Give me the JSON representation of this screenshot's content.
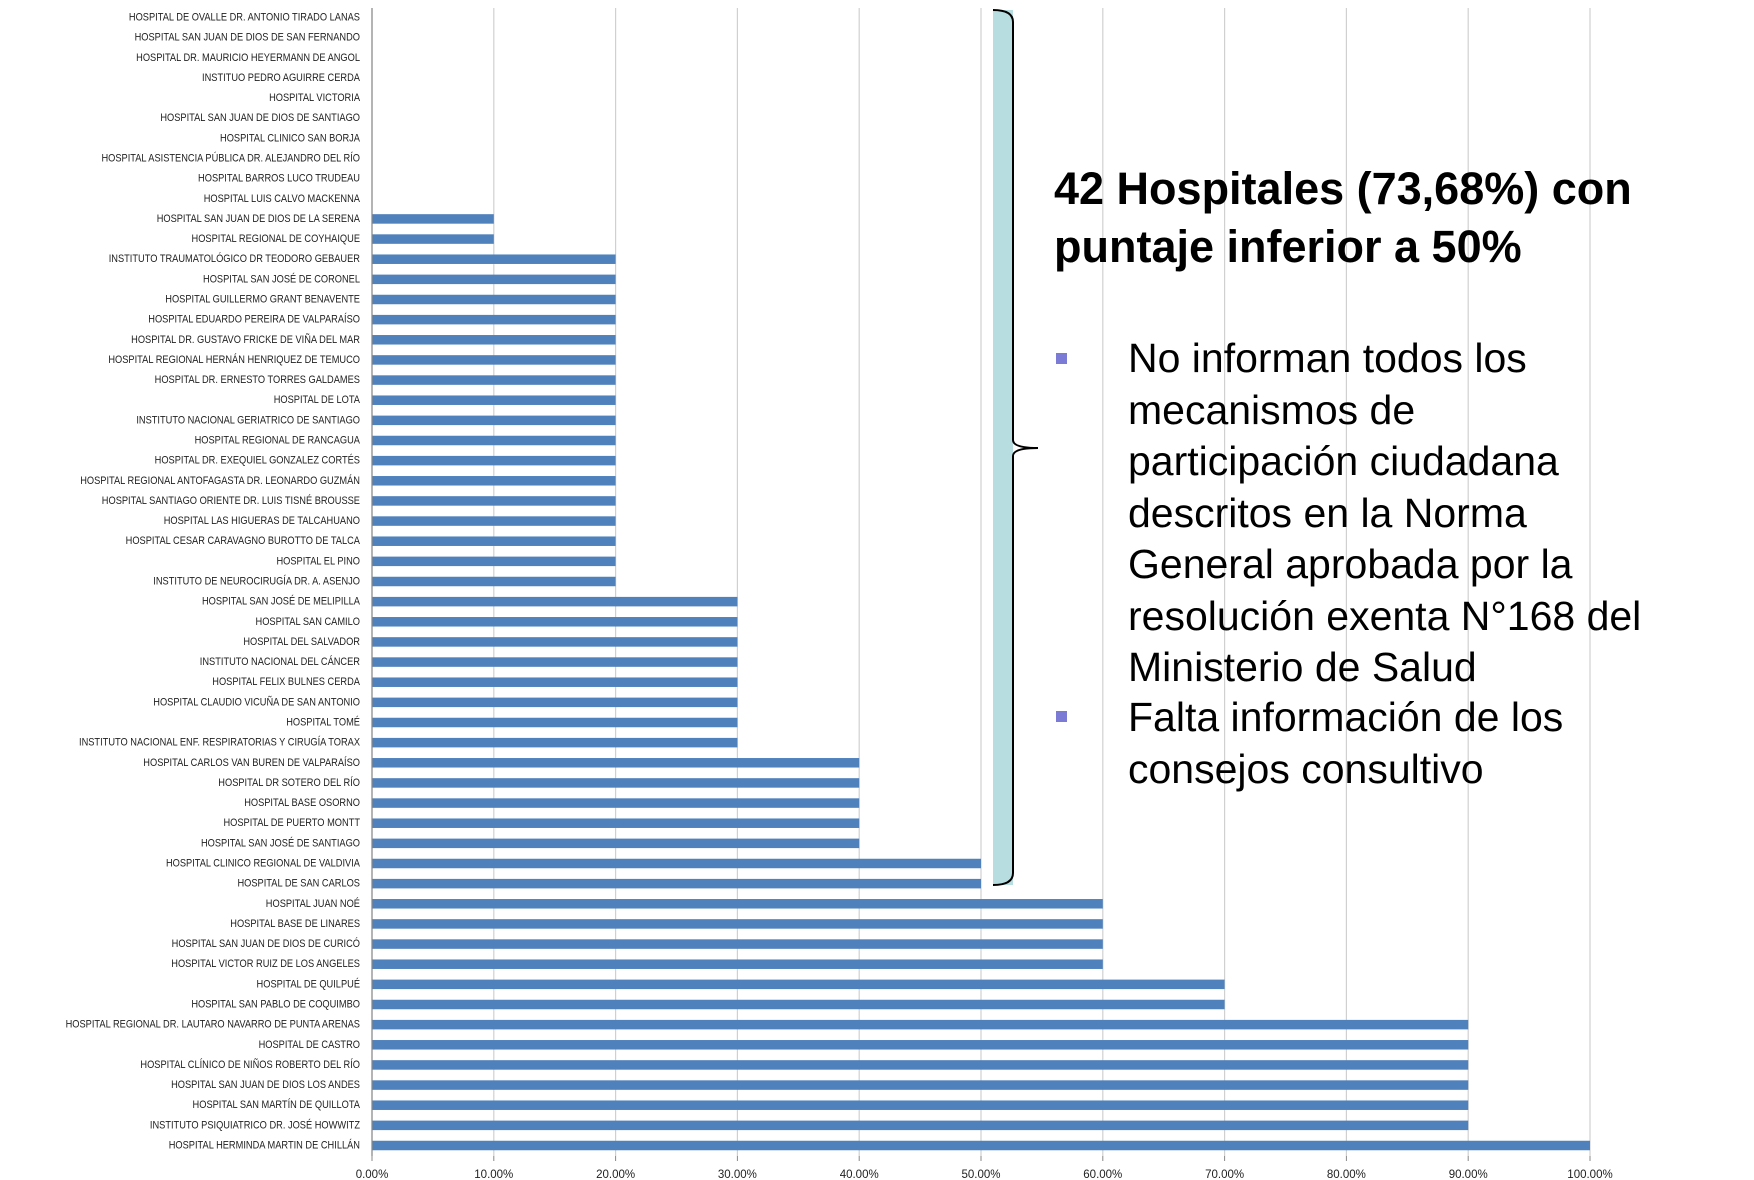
{
  "chart_data": {
    "type": "barh",
    "categories": [
      "HOSPITAL DE OVALLE DR. ANTONIO TIRADO LANAS",
      "HOSPITAL SAN JUAN DE DIOS DE SAN FERNANDO",
      "HOSPITAL DR. MAURICIO HEYERMANN DE ANGOL",
      "INSTITUO PEDRO AGUIRRE CERDA",
      "HOSPITAL VICTORIA",
      "HOSPITAL SAN JUAN DE DIOS DE SANTIAGO",
      "HOSPITAL CLINICO SAN BORJA",
      "HOSPITAL ASISTENCIA PÚBLICA DR. ALEJANDRO DEL RÍO",
      "HOSPITAL BARROS LUCO TRUDEAU",
      "HOSPITAL LUIS CALVO MACKENNA",
      "HOSPITAL SAN JUAN DE DIOS DE LA SERENA",
      "HOSPITAL REGIONAL DE COYHAIQUE",
      "INSTITUTO TRAUMATOLÓGICO DR TEODORO GEBAUER",
      "HOSPITAL  SAN JOSÉ DE CORONEL",
      "HOSPITAL GUILLERMO GRANT BENAVENTE",
      "HOSPITAL EDUARDO PEREIRA DE VALPARAÍSO",
      "HOSPITAL DR. GUSTAVO FRICKE DE VIÑA DEL MAR",
      "HOSPITAL REGIONAL HERNÁN HENRIQUEZ DE  TEMUCO",
      "HOSPITAL DR. ERNESTO TORRES GALDAMES",
      "HOSPITAL DE LOTA",
      "INSTITUTO NACIONAL GERIATRICO  DE SANTIAGO",
      "HOSPITAL REGIONAL DE RANCAGUA",
      "HOSPITAL DR. EXEQUIEL GONZALEZ CORTÉS",
      "HOSPITAL REGIONAL ANTOFAGASTA DR. LEONARDO GUZMÁN",
      "HOSPITAL SANTIAGO ORIENTE DR. LUIS TISNÉ BROUSSE",
      "HOSPITAL LAS HIGUERAS DE TALCAHUANO",
      "HOSPITAL CESAR CARAVAGNO BUROTTO DE TALCA",
      "HOSPITAL EL PINO",
      "INSTITUTO DE NEUROCIRUGÍA DR. A. ASENJO",
      "HOSPITAL SAN JOSÉ DE MELIPILLA",
      "HOSPITAL SAN CAMILO",
      "HOSPITAL DEL SALVADOR",
      "INSTITUTO NACIONAL DEL CÁNCER",
      "HOSPITAL FELIX BULNES CERDA",
      "HOSPITAL CLAUDIO VICUÑA DE SAN ANTONIO",
      "HOSPITAL TOMÉ",
      "INSTITUTO NACIONAL ENF. RESPIRATORIAS Y CIRUGÍA TORAX",
      "HOSPITAL CARLOS VAN BUREN DE VALPARAÍSO",
      "HOSPITAL DR SOTERO DEL RÍO",
      "HOSPITAL BASE OSORNO",
      "HOSPITAL DE PUERTO MONTT",
      "HOSPITAL SAN JOSÉ DE SANTIAGO",
      "HOSPITAL CLINICO REGIONAL DE VALDIVIA",
      "HOSPITAL  DE SAN CARLOS",
      "HOSPITAL JUAN NOÉ",
      "HOSPITAL BASE DE LINARES",
      "HOSPITAL SAN JUAN DE DIOS DE CURICÓ",
      "HOSPITAL VICTOR RUIZ DE LOS ANGELES",
      "HOSPITAL DE QUILPUÉ",
      "HOSPITAL SAN PABLO DE COQUIMBO",
      "HOSPITAL REGIONAL DR. LAUTARO NAVARRO DE PUNTA ARENAS",
      "HOSPITAL DE CASTRO",
      "HOSPITAL CLÍNICO DE NIÑOS ROBERTO DEL RÍO",
      "HOSPITAL SAN JUAN DE DIOS LOS ANDES",
      "HOSPITAL SAN MARTÍN DE QUILLOTA",
      "INSTITUTO PSIQUIATRICO DR. JOSÉ HOWWITZ",
      "HOSPITAL HERMINDA MARTIN DE CHILLÁN"
    ],
    "values": [
      0,
      0,
      0,
      0,
      0,
      0,
      0,
      0,
      0,
      0,
      10,
      10,
      20,
      20,
      20,
      20,
      20,
      20,
      20,
      20,
      20,
      20,
      20,
      20,
      20,
      20,
      20,
      20,
      20,
      30,
      30,
      30,
      30,
      30,
      30,
      30,
      30,
      40,
      40,
      40,
      40,
      40,
      50,
      50,
      60,
      60,
      60,
      60,
      70,
      70,
      90,
      90,
      90,
      90,
      90,
      90,
      100
    ],
    "color": "#4f81bd",
    "xlim": [
      0,
      100
    ],
    "xticks": [
      {
        "value": 0,
        "label": "0.00%"
      },
      {
        "value": 10,
        "label": "10.00%"
      },
      {
        "value": 20,
        "label": "20.00%"
      },
      {
        "value": 30,
        "label": "30.00%"
      },
      {
        "value": 40,
        "label": "40.00%"
      },
      {
        "value": 50,
        "label": "50.00%"
      },
      {
        "value": 60,
        "label": "60.00%"
      },
      {
        "value": 70,
        "label": "70.00%"
      },
      {
        "value": 80,
        "label": "80.00%"
      },
      {
        "value": 90,
        "label": "90.00%"
      },
      {
        "value": 100,
        "label": "100.00%"
      }
    ],
    "grid": true,
    "annotation_title": "42 Hospitales (73,68%) con puntaje inferior a 50%",
    "annotation_bullets": [
      "No informan todos los mecanismos de participación ciudadana descritos en la Norma General aprobada por la resolución exenta N°168 del Ministerio de Salud",
      "Falta información de los consejos consultivo"
    ]
  }
}
